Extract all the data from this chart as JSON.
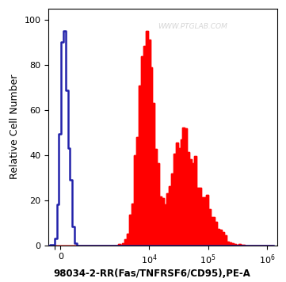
{
  "title": "98034-2-RR(Fas/TNFRSF6/CD95),PE-A",
  "ylabel": "Relative Cell Number",
  "yticks": [
    0,
    20,
    40,
    60,
    80,
    100
  ],
  "ylim": [
    0,
    105
  ],
  "background_color": "#ffffff",
  "plot_bg_color": "#ffffff",
  "watermark": "WWW.PTGLAB.COM",
  "blue_color": "#2222aa",
  "red_color": "#ff0000",
  "title_fontsize": 8.5,
  "ylabel_fontsize": 9,
  "tick_fontsize": 8
}
